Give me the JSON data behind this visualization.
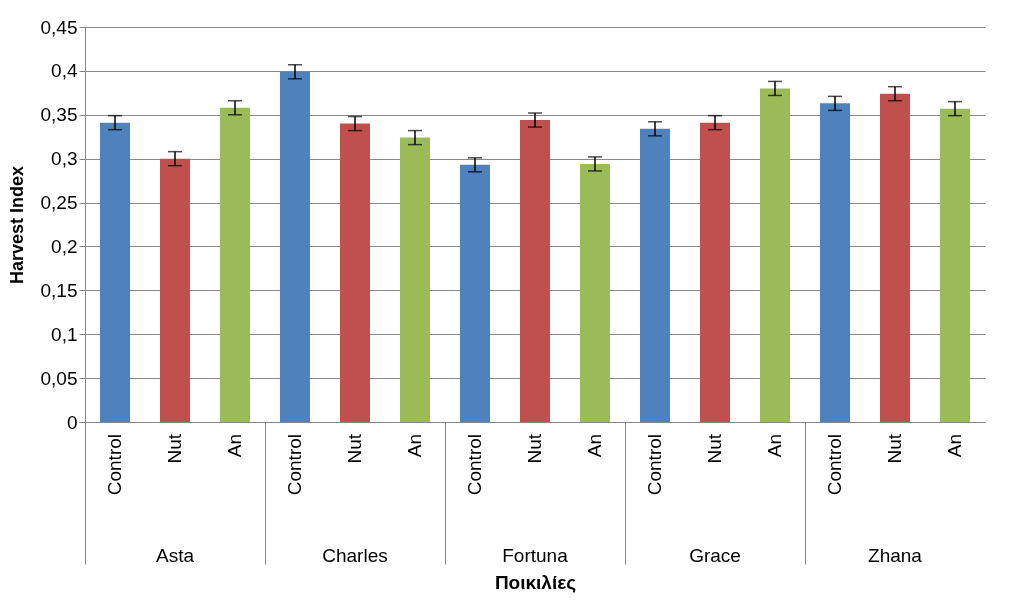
{
  "chart_data": {
    "type": "bar",
    "xlabel": "Ποικιλίες",
    "ylabel": "Harvest Index",
    "categories": [
      "Asta",
      "Charles",
      "Fortuna",
      "Grace",
      "Zhana"
    ],
    "series": [
      {
        "name": "Control",
        "color": "#4f81bd",
        "values": [
          0.341,
          0.399,
          0.293,
          0.334,
          0.363
        ],
        "errors": [
          0.008,
          0.008,
          0.008,
          0.008,
          0.008
        ]
      },
      {
        "name": "Nut",
        "color": "#c0504d",
        "values": [
          0.3,
          0.34,
          0.344,
          0.341,
          0.374
        ],
        "errors": [
          0.008,
          0.008,
          0.008,
          0.008,
          0.008
        ]
      },
      {
        "name": "An",
        "color": "#9bbb59",
        "values": [
          0.358,
          0.324,
          0.294,
          0.38,
          0.357
        ],
        "errors": [
          0.008,
          0.008,
          0.008,
          0.008,
          0.008
        ]
      }
    ],
    "ylim": [
      0,
      0.45
    ],
    "yticks": [
      0,
      {
        "value": 0.05,
        "label": "0,05"
      },
      {
        "value": 0.1,
        "label": "0,1"
      },
      {
        "value": 0.15,
        "label": "0,15"
      },
      {
        "value": 0.2,
        "label": "0,2"
      },
      {
        "value": 0.25,
        "label": "0,25"
      },
      {
        "value": 0.3,
        "label": "0,3"
      },
      {
        "value": 0.35,
        "label": "0,35"
      },
      {
        "value": 0.4,
        "label": "0,4"
      },
      {
        "value": 0.45,
        "label": "0,45"
      }
    ],
    "grid": "y"
  }
}
